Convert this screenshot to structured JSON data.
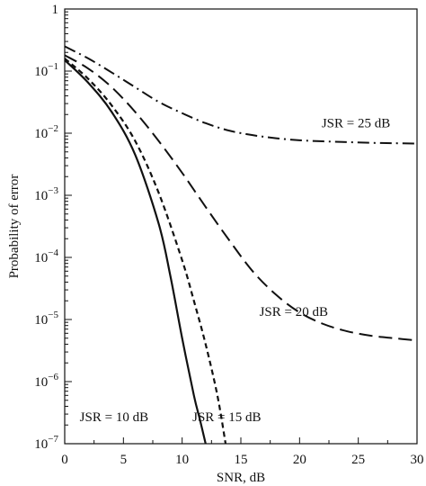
{
  "chart_data": {
    "type": "line",
    "xlabel": "SNR, dB",
    "ylabel": "Probability of error",
    "xlim": [
      0,
      30
    ],
    "ylim": [
      1e-07,
      1
    ],
    "y_scale": "log",
    "grid": false,
    "legend": "inline labels next to curves",
    "x_ticks": [
      {
        "value": 0,
        "label": "0"
      },
      {
        "value": 5,
        "label": "5"
      },
      {
        "value": 10,
        "label": "10"
      },
      {
        "value": 15,
        "label": "15"
      },
      {
        "value": 20,
        "label": "20"
      },
      {
        "value": 25,
        "label": "25"
      },
      {
        "value": 30,
        "label": "30"
      }
    ],
    "y_ticks": [
      {
        "value": 1,
        "base": "1",
        "exp": ""
      },
      {
        "value": 0.1,
        "base": "10",
        "exp": "−1"
      },
      {
        "value": 0.01,
        "base": "10",
        "exp": "−2"
      },
      {
        "value": 0.001,
        "base": "10",
        "exp": "−3"
      },
      {
        "value": 0.0001,
        "base": "10",
        "exp": "−4"
      },
      {
        "value": 1e-05,
        "base": "10",
        "exp": "−5"
      },
      {
        "value": 1e-06,
        "base": "10",
        "exp": "−6"
      },
      {
        "value": 1e-07,
        "base": "10",
        "exp": "−7"
      }
    ],
    "series": [
      {
        "name": "JSR = 10 dB",
        "dash": "solid",
        "x": [
          0,
          2,
          4,
          6,
          8,
          9,
          10,
          11,
          11.5,
          12
        ],
        "y": [
          0.15,
          0.065,
          0.022,
          0.0045,
          0.00035,
          5e-05,
          5e-06,
          6e-07,
          2.5e-07,
          1e-07
        ]
      },
      {
        "name": "JSR = 15 dB",
        "dash": "short-dash",
        "x": [
          0,
          2,
          4,
          6,
          8,
          10,
          11,
          12,
          13,
          13.7
        ],
        "y": [
          0.16,
          0.075,
          0.028,
          0.0075,
          0.0011,
          9e-05,
          2e-05,
          4e-06,
          6e-07,
          1e-07
        ]
      },
      {
        "name": "JSR = 20 dB",
        "dash": "long-dash",
        "x": [
          0,
          2,
          4,
          6,
          8,
          10,
          12,
          14,
          16,
          18,
          20,
          22,
          24,
          26,
          28,
          30
        ],
        "y": [
          0.18,
          0.11,
          0.055,
          0.022,
          0.0075,
          0.0023,
          0.00065,
          0.00019,
          6e-05,
          2.5e-05,
          1.3e-05,
          8.5e-06,
          6.5e-06,
          5.5e-06,
          5e-06,
          4.6e-06
        ]
      },
      {
        "name": "JSR = 25 dB",
        "dash": "dash-dot",
        "x": [
          0,
          2,
          4,
          6,
          8,
          10,
          12,
          14,
          16,
          18,
          20,
          22,
          24,
          26,
          28,
          30
        ],
        "y": [
          0.25,
          0.16,
          0.095,
          0.055,
          0.032,
          0.021,
          0.0145,
          0.011,
          0.0093,
          0.0083,
          0.0077,
          0.0074,
          0.0072,
          0.007,
          0.0069,
          0.0068
        ]
      }
    ],
    "annotations": [
      {
        "text": "JSR = 25 dB",
        "series": "JSR = 25 dB",
        "x": 24.8,
        "y": 0.0125
      },
      {
        "text": "JSR = 20 dB",
        "series": "JSR = 20 dB",
        "x": 19.5,
        "y": 1.15e-05
      },
      {
        "text": "JSR = 10 dB",
        "series": "JSR = 10 dB",
        "x": 4.2,
        "y": 2.3e-07
      },
      {
        "text": "JSR = 15 dB",
        "series": "JSR = 15 dB",
        "x": 13.8,
        "y": 2.3e-07
      }
    ]
  }
}
